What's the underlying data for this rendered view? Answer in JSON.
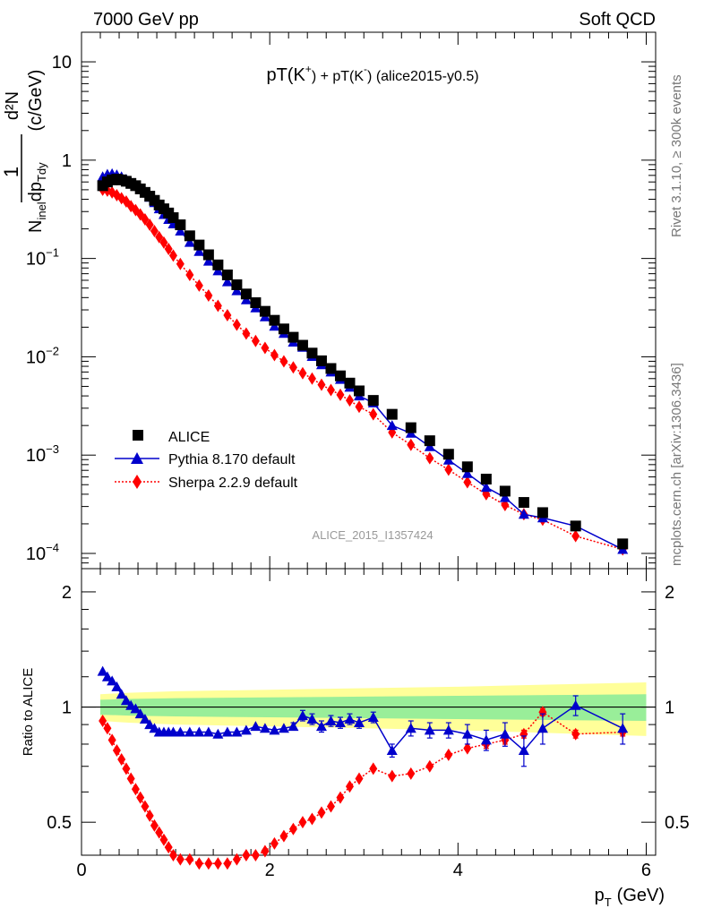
{
  "header": {
    "left": "7000 GeV pp",
    "right": "Soft QCD"
  },
  "side_labels": {
    "rivet": "Rivet 3.1.10, ≥ 300k events",
    "mcplots": "mcplots.cern.ch [arXiv:1306.3436]"
  },
  "analysis_id": "ALICE_2015_I1357424",
  "chart_data": [
    {
      "type": "scatter",
      "title_parts": {
        "a": "pT(K",
        "b": "+",
        "c": ") + pT(K",
        "d": "-",
        "e": ") (alice2015-y0.5)"
      },
      "ylabel_parts": {
        "one": "1",
        "d2N": "d²N",
        "den": "N",
        "inel": "inel",
        "dp": "dp",
        "Tdy": "Tdy",
        "unit": "(c/GeV)"
      },
      "yscale": "log",
      "xlim": [
        0,
        6.1
      ],
      "ylim": [
        7e-05,
        20
      ],
      "x_ticks": [
        0,
        2,
        4,
        6
      ],
      "y_ticks": [
        {
          "value": 10,
          "base": "10",
          "exp": ""
        },
        {
          "value": 1,
          "base": "1",
          "exp": ""
        },
        {
          "value": 0.1,
          "base": "10",
          "exp": "−1"
        },
        {
          "value": 0.01,
          "base": "10",
          "exp": "−2"
        },
        {
          "value": 0.001,
          "base": "10",
          "exp": "−3"
        },
        {
          "value": 0.0001,
          "base": "10",
          "exp": "−4"
        }
      ],
      "legend": {
        "placement": "bottom-left"
      },
      "x": [
        0.225,
        0.275,
        0.325,
        0.375,
        0.425,
        0.475,
        0.525,
        0.575,
        0.625,
        0.675,
        0.725,
        0.775,
        0.825,
        0.875,
        0.925,
        0.975,
        1.05,
        1.15,
        1.25,
        1.35,
        1.45,
        1.55,
        1.65,
        1.75,
        1.85,
        1.95,
        2.05,
        2.15,
        2.25,
        2.35,
        2.45,
        2.55,
        2.65,
        2.75,
        2.85,
        2.95,
        3.1,
        3.3,
        3.5,
        3.7,
        3.9,
        4.1,
        4.3,
        4.5,
        4.7,
        4.9,
        5.25,
        5.75
      ],
      "series": [
        {
          "name": "ALICE",
          "color": "#000000",
          "marker": "square",
          "values": [
            0.55,
            0.6,
            0.63,
            0.64,
            0.63,
            0.61,
            0.58,
            0.55,
            0.51,
            0.47,
            0.43,
            0.39,
            0.35,
            0.32,
            0.29,
            0.26,
            0.22,
            0.17,
            0.137,
            0.109,
            0.086,
            0.068,
            0.054,
            0.0435,
            0.0355,
            0.029,
            0.0235,
            0.0192,
            0.0158,
            0.0131,
            0.0109,
            0.0091,
            0.0076,
            0.0064,
            0.0054,
            0.0045,
            0.0036,
            0.0026,
            0.0019,
            0.0014,
            0.00102,
            0.00076,
            0.00057,
            0.00043,
            0.00033,
            0.00026,
            0.00019,
            0.000125
          ]
        },
        {
          "name": "Pythia 8.170 default",
          "color": "#0000cc",
          "marker": "triangle",
          "values": [
            0.68,
            0.72,
            0.73,
            0.71,
            0.68,
            0.64,
            0.6,
            0.56,
            0.51,
            0.47,
            0.42,
            0.37,
            0.32,
            0.28,
            0.25,
            0.225,
            0.19,
            0.146,
            0.118,
            0.094,
            0.075,
            0.058,
            0.047,
            0.038,
            0.0315,
            0.0255,
            0.0205,
            0.0173,
            0.0141,
            0.0125,
            0.0101,
            0.0083,
            0.007,
            0.0059,
            0.0049,
            0.004,
            0.0034,
            0.002,
            0.00167,
            0.00122,
            0.00089,
            0.00065,
            0.00047,
            0.00037,
            0.00025,
            0.00023,
            0.00019,
            0.00011
          ]
        },
        {
          "name": "Sherpa 2.2.9 default",
          "color": "#ff0000",
          "marker": "diamond",
          "values": [
            0.5,
            0.49,
            0.47,
            0.44,
            0.41,
            0.38,
            0.34,
            0.31,
            0.28,
            0.25,
            0.22,
            0.19,
            0.165,
            0.145,
            0.125,
            0.107,
            0.088,
            0.068,
            0.053,
            0.042,
            0.033,
            0.0265,
            0.0212,
            0.0172,
            0.0145,
            0.0123,
            0.0104,
            0.009,
            0.0078,
            0.0068,
            0.006,
            0.0052,
            0.0046,
            0.0041,
            0.0036,
            0.0031,
            0.0026,
            0.0017,
            0.00127,
            0.00093,
            0.00071,
            0.00053,
            0.0004,
            0.00031,
            0.00025,
            0.00022,
            0.00015,
            0.00011
          ]
        }
      ]
    },
    {
      "type": "scatter",
      "ylabel": "Ratio to ALICE",
      "xlabel_parts": {
        "p": "p",
        "T": "T",
        "unit": "(GeV)"
      },
      "yscale": "log",
      "xlim": [
        0,
        6.1
      ],
      "ylim": [
        0.41,
        2.3
      ],
      "x_ticks": [
        0,
        2,
        4,
        6
      ],
      "y_ticks": [
        {
          "value": 2,
          "label": "2"
        },
        {
          "value": 1,
          "label": "1"
        },
        {
          "value": 0.5,
          "label": "0.5"
        }
      ],
      "reference_line": 1,
      "bands": {
        "inner_color": "#99ee99",
        "outer_color": "#ffff99",
        "x": [
          0.2,
          0.5,
          1.0,
          2.0,
          3.0,
          4.0,
          5.0,
          6.0
        ],
        "inner_half_width": [
          0.045,
          0.05,
          0.055,
          0.06,
          0.065,
          0.07,
          0.075,
          0.08
        ],
        "outer_half_width": [
          0.08,
          0.09,
          0.1,
          0.11,
          0.12,
          0.13,
          0.145,
          0.16
        ]
      },
      "series": [
        {
          "name": "Pythia 8.170 default",
          "color": "#0000cc",
          "marker": "triangle",
          "x": [
            0.225,
            0.275,
            0.325,
            0.375,
            0.425,
            0.475,
            0.525,
            0.575,
            0.625,
            0.675,
            0.725,
            0.775,
            0.825,
            0.875,
            0.925,
            0.975,
            1.05,
            1.15,
            1.25,
            1.35,
            1.45,
            1.55,
            1.65,
            1.75,
            1.85,
            1.95,
            2.05,
            2.15,
            2.25,
            2.35,
            2.45,
            2.55,
            2.65,
            2.75,
            2.85,
            2.95,
            3.1,
            3.3,
            3.5,
            3.7,
            3.9,
            4.1,
            4.3,
            4.5,
            4.7,
            4.9,
            5.25,
            5.75
          ],
          "values": [
            1.24,
            1.2,
            1.17,
            1.13,
            1.08,
            1.04,
            1.01,
            0.99,
            0.96,
            0.93,
            0.9,
            0.88,
            0.86,
            0.86,
            0.86,
            0.86,
            0.86,
            0.86,
            0.86,
            0.86,
            0.85,
            0.86,
            0.86,
            0.87,
            0.89,
            0.88,
            0.87,
            0.88,
            0.89,
            0.95,
            0.93,
            0.89,
            0.92,
            0.91,
            0.93,
            0.91,
            0.94,
            0.77,
            0.88,
            0.87,
            0.87,
            0.85,
            0.82,
            0.85,
            0.77,
            0.88,
            1.01,
            0.88
          ],
          "errors": [
            0.01,
            0.01,
            0.01,
            0.01,
            0.01,
            0.01,
            0.01,
            0.01,
            0.01,
            0.01,
            0.01,
            0.01,
            0.01,
            0.01,
            0.01,
            0.01,
            0.01,
            0.01,
            0.01,
            0.01,
            0.01,
            0.01,
            0.01,
            0.01,
            0.01,
            0.01,
            0.01,
            0.01,
            0.02,
            0.03,
            0.03,
            0.03,
            0.03,
            0.03,
            0.03,
            0.03,
            0.03,
            0.03,
            0.04,
            0.04,
            0.04,
            0.05,
            0.05,
            0.06,
            0.07,
            0.08,
            0.06,
            0.08
          ]
        },
        {
          "name": "Sherpa 2.2.9 default",
          "color": "#ff0000",
          "marker": "diamond",
          "x": [
            0.225,
            0.275,
            0.325,
            0.375,
            0.425,
            0.475,
            0.525,
            0.575,
            0.625,
            0.675,
            0.725,
            0.775,
            0.825,
            0.875,
            0.925,
            0.975,
            1.05,
            1.15,
            1.25,
            1.35,
            1.45,
            1.55,
            1.65,
            1.75,
            1.85,
            1.95,
            2.05,
            2.15,
            2.25,
            2.35,
            2.45,
            2.55,
            2.65,
            2.75,
            2.85,
            2.95,
            3.1,
            3.3,
            3.5,
            3.7,
            3.9,
            4.1,
            4.3,
            4.5,
            4.7,
            4.9,
            5.25,
            5.75
          ],
          "values": [
            0.92,
            0.88,
            0.82,
            0.77,
            0.73,
            0.69,
            0.65,
            0.61,
            0.58,
            0.55,
            0.52,
            0.49,
            0.47,
            0.45,
            0.43,
            0.41,
            0.4,
            0.4,
            0.39,
            0.39,
            0.39,
            0.39,
            0.4,
            0.41,
            0.41,
            0.42,
            0.44,
            0.46,
            0.48,
            0.5,
            0.51,
            0.53,
            0.55,
            0.58,
            0.62,
            0.65,
            0.69,
            0.66,
            0.67,
            0.7,
            0.75,
            0.78,
            0.8,
            0.82,
            0.85,
            0.97,
            0.85,
            0.86
          ],
          "errors": [
            0.005,
            0.005,
            0.005,
            0.005,
            0.005,
            0.005,
            0.005,
            0.005,
            0.005,
            0.005,
            0.005,
            0.005,
            0.005,
            0.005,
            0.005,
            0.005,
            0.005,
            0.005,
            0.005,
            0.005,
            0.005,
            0.005,
            0.005,
            0.005,
            0.005,
            0.005,
            0.005,
            0.005,
            0.005,
            0.005,
            0.005,
            0.005,
            0.005,
            0.005,
            0.005,
            0.005,
            0.005,
            0.01,
            0.01,
            0.01,
            0.01,
            0.01,
            0.02,
            0.02,
            0.02,
            0.02,
            0.02,
            0.02
          ]
        }
      ]
    }
  ]
}
